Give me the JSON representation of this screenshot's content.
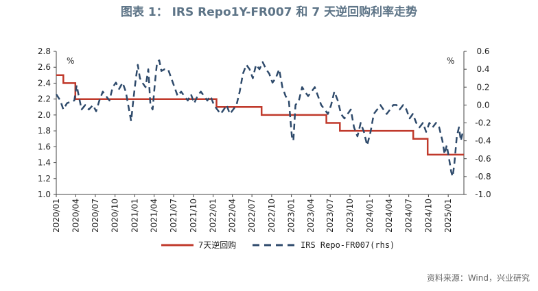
{
  "figure": {
    "title": "图表 1： IRS Repo1Y-FR007 和 7 天逆回购利率走势",
    "left_unit": "%",
    "right_unit": "%",
    "source": "资料来源：Wind，兴业研究"
  },
  "chart_data": {
    "type": "line",
    "title": "图表 1： IRS Repo1Y-FR007 和 7 天逆回购利率走势",
    "x_tick_labels": [
      "2020/01",
      "2020/04",
      "2020/07",
      "2020/10",
      "2021/01",
      "2021/04",
      "2021/07",
      "2021/10",
      "2022/01",
      "2022/04",
      "2022/07",
      "2022/10",
      "2023/01",
      "2023/04",
      "2023/07",
      "2023/10",
      "2024/01",
      "2024/04",
      "2024/07",
      "2024/10",
      "2025/01"
    ],
    "x_range": [
      "2020-01-01",
      "2025-03-15"
    ],
    "y_left": {
      "range": [
        1.0,
        2.8
      ],
      "ticks": [
        "1.0",
        "1.2",
        "1.4",
        "1.6",
        "1.8",
        "2.0",
        "2.2",
        "2.4",
        "2.6",
        "2.8"
      ]
    },
    "y_right": {
      "range": [
        -1.0,
        0.6
      ],
      "ticks": [
        "-1.0",
        "-0.8",
        "-0.6",
        "-0.4",
        "-0.2",
        "0.0",
        "0.2",
        "0.4",
        "0.6"
      ]
    },
    "grid": false,
    "legend_position": "bottom",
    "colors": {
      "reverse_repo": "#c0392b",
      "irs_spread": "#2e4a6b"
    },
    "series": [
      {
        "name": "7天逆回购",
        "axis": "left",
        "style": "step",
        "points": [
          [
            "2020-01-01",
            2.5
          ],
          [
            "2020-02-03",
            2.4
          ],
          [
            "2020-03-30",
            2.2
          ],
          [
            "2022-01-17",
            2.1
          ],
          [
            "2022-08-15",
            2.0
          ],
          [
            "2023-06-13",
            1.9
          ],
          [
            "2023-08-15",
            1.8
          ],
          [
            "2024-07-22",
            1.7
          ],
          [
            "2024-09-27",
            1.5
          ],
          [
            "2025-03-15",
            1.5
          ]
        ]
      },
      {
        "name": "IRS Repo-FR007(rhs)",
        "axis": "right",
        "style": "dashed",
        "points": [
          [
            "2020-01-01",
            0.12
          ],
          [
            "2020-01-20",
            0.05
          ],
          [
            "2020-02-03",
            -0.05
          ],
          [
            "2020-02-20",
            0.02
          ],
          [
            "2020-03-10",
            0.04
          ],
          [
            "2020-03-25",
            0.05
          ],
          [
            "2020-04-05",
            0.22
          ],
          [
            "2020-04-15",
            0.1
          ],
          [
            "2020-04-28",
            -0.05
          ],
          [
            "2020-05-15",
            0.0
          ],
          [
            "2020-06-01",
            -0.05
          ],
          [
            "2020-06-20",
            0.0
          ],
          [
            "2020-07-05",
            -0.07
          ],
          [
            "2020-07-20",
            0.05
          ],
          [
            "2020-08-05",
            0.15
          ],
          [
            "2020-08-20",
            0.1
          ],
          [
            "2020-09-05",
            0.05
          ],
          [
            "2020-09-20",
            0.2
          ],
          [
            "2020-10-05",
            0.25
          ],
          [
            "2020-10-20",
            0.18
          ],
          [
            "2020-11-05",
            0.25
          ],
          [
            "2020-11-20",
            0.15
          ],
          [
            "2020-12-05",
            -0.05
          ],
          [
            "2020-12-15",
            -0.18
          ],
          [
            "2020-12-25",
            0.05
          ],
          [
            "2021-01-05",
            0.28
          ],
          [
            "2021-01-15",
            0.45
          ],
          [
            "2021-01-25",
            0.3
          ],
          [
            "2021-02-05",
            0.25
          ],
          [
            "2021-02-20",
            0.2
          ],
          [
            "2021-03-05",
            0.4
          ],
          [
            "2021-03-15",
            0.0
          ],
          [
            "2021-03-25",
            -0.05
          ],
          [
            "2021-04-05",
            0.25
          ],
          [
            "2021-04-15",
            0.48
          ],
          [
            "2021-04-25",
            0.5
          ],
          [
            "2021-05-05",
            0.38
          ],
          [
            "2021-05-20",
            0.4
          ],
          [
            "2021-06-05",
            0.4
          ],
          [
            "2021-06-20",
            0.3
          ],
          [
            "2021-07-05",
            0.2
          ],
          [
            "2021-07-20",
            0.1
          ],
          [
            "2021-08-05",
            0.15
          ],
          [
            "2021-08-20",
            0.1
          ],
          [
            "2021-09-05",
            0.05
          ],
          [
            "2021-09-20",
            0.12
          ],
          [
            "2021-10-05",
            0.02
          ],
          [
            "2021-10-20",
            0.1
          ],
          [
            "2021-11-05",
            0.15
          ],
          [
            "2021-11-20",
            0.1
          ],
          [
            "2021-12-05",
            0.05
          ],
          [
            "2021-12-20",
            0.1
          ],
          [
            "2022-01-05",
            0.0
          ],
          [
            "2022-01-20",
            -0.05
          ],
          [
            "2022-02-05",
            -0.1
          ],
          [
            "2022-02-20",
            -0.05
          ],
          [
            "2022-03-05",
            0.0
          ],
          [
            "2022-03-20",
            -0.1
          ],
          [
            "2022-04-05",
            -0.05
          ],
          [
            "2022-04-20",
            0.0
          ],
          [
            "2022-05-05",
            0.15
          ],
          [
            "2022-05-20",
            0.35
          ],
          [
            "2022-06-05",
            0.45
          ],
          [
            "2022-06-20",
            0.4
          ],
          [
            "2022-07-05",
            0.3
          ],
          [
            "2022-07-20",
            0.45
          ],
          [
            "2022-08-05",
            0.4
          ],
          [
            "2022-08-20",
            0.48
          ],
          [
            "2022-09-05",
            0.4
          ],
          [
            "2022-09-20",
            0.35
          ],
          [
            "2022-10-05",
            0.25
          ],
          [
            "2022-10-20",
            0.3
          ],
          [
            "2022-11-05",
            0.4
          ],
          [
            "2022-11-20",
            0.2
          ],
          [
            "2022-12-05",
            0.1
          ],
          [
            "2022-12-20",
            0.05
          ],
          [
            "2023-01-03",
            -0.35
          ],
          [
            "2023-01-10",
            -0.4
          ],
          [
            "2023-01-20",
            0.0
          ],
          [
            "2023-02-05",
            0.05
          ],
          [
            "2023-02-20",
            0.2
          ],
          [
            "2023-03-05",
            0.15
          ],
          [
            "2023-03-20",
            0.1
          ],
          [
            "2023-04-05",
            0.15
          ],
          [
            "2023-04-20",
            0.2
          ],
          [
            "2023-05-05",
            0.1
          ],
          [
            "2023-05-20",
            0.0
          ],
          [
            "2023-06-05",
            -0.05
          ],
          [
            "2023-06-20",
            -0.1
          ],
          [
            "2023-07-05",
            0.0
          ],
          [
            "2023-07-20",
            0.15
          ],
          [
            "2023-08-05",
            0.05
          ],
          [
            "2023-08-20",
            -0.1
          ],
          [
            "2023-09-05",
            -0.15
          ],
          [
            "2023-09-20",
            -0.1
          ],
          [
            "2023-10-05",
            -0.05
          ],
          [
            "2023-10-20",
            -0.25
          ],
          [
            "2023-11-05",
            -0.35
          ],
          [
            "2023-11-20",
            -0.2
          ],
          [
            "2023-12-05",
            -0.3
          ],
          [
            "2023-12-20",
            -0.45
          ],
          [
            "2024-01-05",
            -0.3
          ],
          [
            "2024-01-20",
            -0.1
          ],
          [
            "2024-02-05",
            -0.05
          ],
          [
            "2024-02-20",
            0.0
          ],
          [
            "2024-03-05",
            -0.05
          ],
          [
            "2024-03-20",
            -0.1
          ],
          [
            "2024-04-05",
            -0.05
          ],
          [
            "2024-04-20",
            0.0
          ],
          [
            "2024-05-05",
            0.0
          ],
          [
            "2024-05-20",
            -0.05
          ],
          [
            "2024-06-05",
            0.0
          ],
          [
            "2024-06-20",
            -0.05
          ],
          [
            "2024-07-05",
            -0.15
          ],
          [
            "2024-07-20",
            -0.1
          ],
          [
            "2024-08-05",
            -0.2
          ],
          [
            "2024-08-20",
            -0.25
          ],
          [
            "2024-09-05",
            -0.2
          ],
          [
            "2024-09-20",
            -0.3
          ],
          [
            "2024-10-05",
            -0.2
          ],
          [
            "2024-10-20",
            -0.25
          ],
          [
            "2024-11-05",
            -0.2
          ],
          [
            "2024-11-20",
            -0.25
          ],
          [
            "2024-12-05",
            -0.4
          ],
          [
            "2024-12-15",
            -0.55
          ],
          [
            "2024-12-25",
            -0.45
          ],
          [
            "2025-01-05",
            -0.6
          ],
          [
            "2025-01-15",
            -0.75
          ],
          [
            "2025-01-22",
            -0.8
          ],
          [
            "2025-01-30",
            -0.65
          ],
          [
            "2025-02-10",
            -0.35
          ],
          [
            "2025-02-20",
            -0.25
          ],
          [
            "2025-03-01",
            -0.4
          ],
          [
            "2025-03-10",
            -0.3
          ]
        ]
      }
    ]
  }
}
